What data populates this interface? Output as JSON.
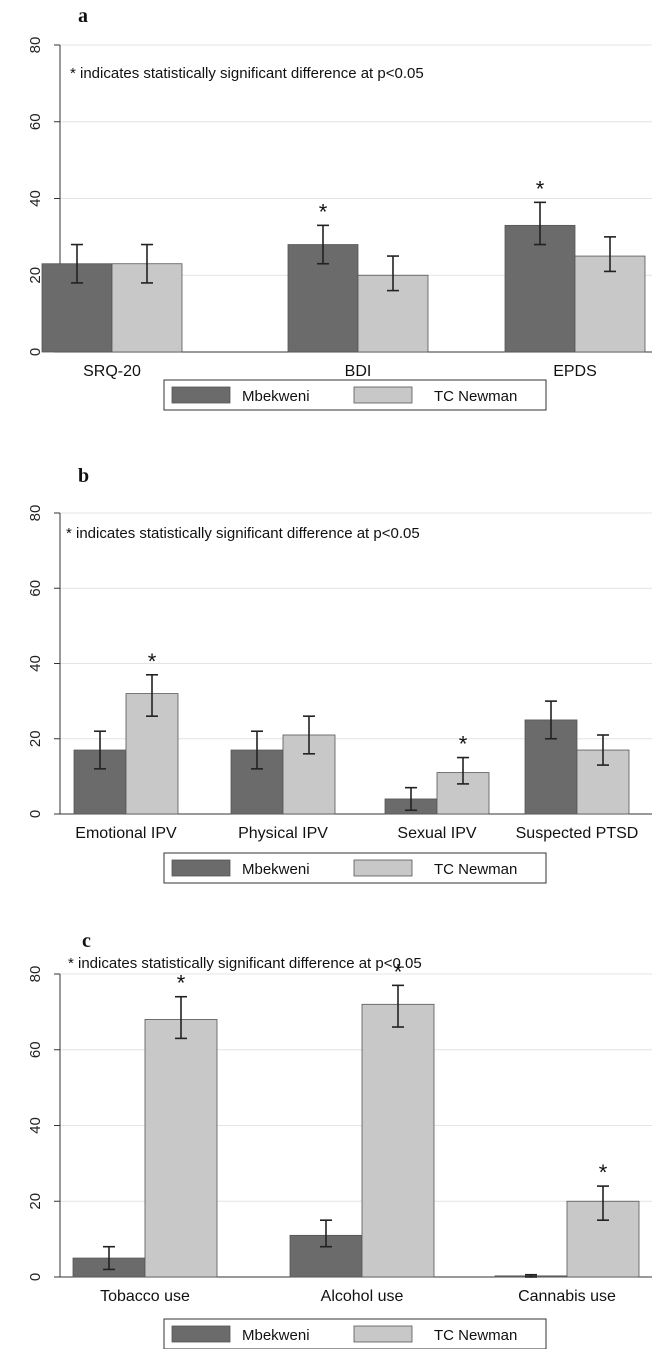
{
  "colors": {
    "mbekweni": "#6b6b6b",
    "tc_newman": "#c8c8c8",
    "grid": "#e4e4e4",
    "axis": "#333333"
  },
  "note": "* indicates statistically significant difference at p<0.05",
  "legend": [
    "Mbekweni",
    "TC Newman"
  ],
  "chart_data": [
    {
      "type": "bar",
      "panel": "a",
      "categories": [
        "SRQ-20",
        "BDI",
        "EPDS"
      ],
      "yticks": [
        0,
        20,
        40,
        60,
        80
      ],
      "ylim": [
        0,
        80
      ],
      "series": [
        {
          "name": "Mbekweni",
          "values": [
            23,
            28,
            33
          ],
          "ci_low": [
            18,
            23,
            28
          ],
          "ci_high": [
            28,
            33,
            39
          ]
        },
        {
          "name": "TC Newman",
          "values": [
            23,
            20,
            25
          ],
          "ci_low": [
            18,
            16,
            21
          ],
          "ci_high": [
            28,
            25,
            30
          ]
        }
      ],
      "significant": [
        false,
        true,
        true
      ]
    },
    {
      "type": "bar",
      "panel": "b",
      "categories": [
        "Emotional IPV",
        "Physical IPV",
        "Sexual IPV",
        "Suspected PTSD"
      ],
      "yticks": [
        0,
        20,
        40,
        60,
        80
      ],
      "ylim": [
        0,
        80
      ],
      "series": [
        {
          "name": "Mbekweni",
          "values": [
            17,
            17,
            4,
            25
          ],
          "ci_low": [
            12,
            12,
            1,
            20
          ],
          "ci_high": [
            22,
            22,
            7,
            30
          ]
        },
        {
          "name": "TC Newman",
          "values": [
            32,
            21,
            11,
            17
          ],
          "ci_low": [
            26,
            16,
            8,
            13
          ],
          "ci_high": [
            37,
            26,
            15,
            21
          ]
        }
      ],
      "significant": [
        true,
        false,
        true,
        false
      ]
    },
    {
      "type": "bar",
      "panel": "c",
      "categories": [
        "Tobacco use",
        "Alcohol use",
        "Cannabis use"
      ],
      "yticks": [
        0,
        20,
        40,
        60,
        80
      ],
      "ylim": [
        0,
        80
      ],
      "series": [
        {
          "name": "Mbekweni",
          "values": [
            5,
            11,
            0.3
          ],
          "ci_low": [
            2,
            8,
            0
          ],
          "ci_high": [
            8,
            15,
            0.6
          ]
        },
        {
          "name": "TC Newman",
          "values": [
            68,
            72,
            20
          ],
          "ci_low": [
            63,
            66,
            15
          ],
          "ci_high": [
            74,
            77,
            24
          ]
        }
      ],
      "significant": [
        true,
        true,
        true
      ]
    }
  ]
}
